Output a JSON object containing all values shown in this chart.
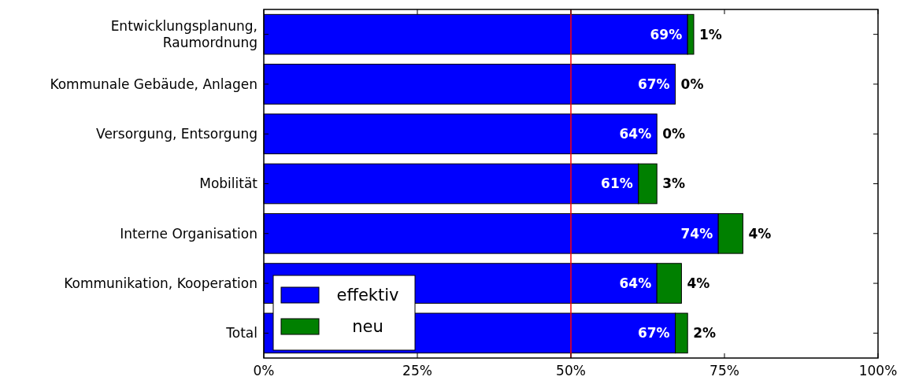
{
  "chart_data": {
    "type": "bar",
    "orientation": "horizontal",
    "stacked": true,
    "categories": [
      "Entwicklungsplanung,\nRaumordnung",
      "Kommunale Gebäude, Anlagen",
      "Versorgung, Entsorgung",
      "Mobilität",
      "Interne Organisation",
      "Kommunikation, Kooperation",
      "Total"
    ],
    "series": [
      {
        "name": "effektiv",
        "color": "#0000ff",
        "values": [
          69,
          67,
          64,
          61,
          74,
          64,
          67
        ],
        "value_labels": [
          "69%",
          "67%",
          "64%",
          "61%",
          "74%",
          "64%",
          "67%"
        ]
      },
      {
        "name": "neu",
        "color": "#008000",
        "values": [
          1,
          0,
          0,
          3,
          4,
          4,
          2
        ],
        "value_labels": [
          "1%",
          "0%",
          "0%",
          "3%",
          "4%",
          "4%",
          "2%"
        ]
      }
    ],
    "xlim": [
      0,
      100
    ],
    "xticks": [
      {
        "value": 0,
        "label": "0%"
      },
      {
        "value": 25,
        "label": "25%"
      },
      {
        "value": 50,
        "label": "50%"
      },
      {
        "value": 75,
        "label": "75%"
      },
      {
        "value": 100,
        "label": "100%"
      }
    ],
    "ref_lines": [
      {
        "axis": "x",
        "value": 50,
        "color": "#ff0000"
      }
    ],
    "legend": "bottom left",
    "grid": false
  }
}
